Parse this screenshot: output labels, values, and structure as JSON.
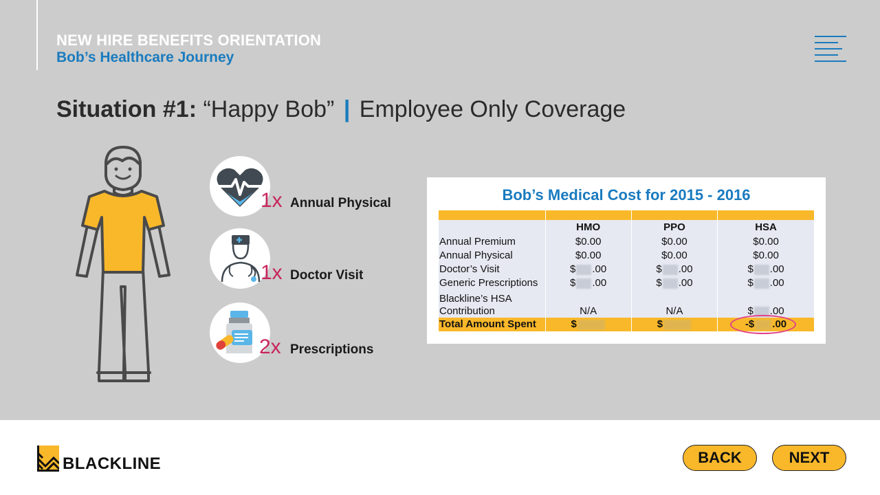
{
  "header": {
    "course_title": "NEW HIRE BENEFITS ORIENTATION",
    "course_subtitle": "Bob’s Healthcare Journey",
    "menu_icon": "hamburger-menu-icon"
  },
  "slide": {
    "situation_label": "Situation #1:",
    "situation_name": "“Happy Bob”",
    "separator": "|",
    "coverage": "Employee Only Coverage"
  },
  "items": [
    {
      "icon": "heart-rate-icon",
      "count": "1x",
      "label": "Annual Physical"
    },
    {
      "icon": "doctor-icon",
      "count": "1x",
      "label": "Doctor Visit"
    },
    {
      "icon": "prescription-bottle-icon",
      "count": "2x",
      "label": "Prescriptions"
    }
  ],
  "cost_table": {
    "title": "Bob’s Medical Cost for 2015 - 2016",
    "columns": [
      "",
      "HMO",
      "PPO",
      "HSA"
    ],
    "rows": [
      {
        "label": "Annual Premium",
        "hmo": "$0.00",
        "ppo": "$0.00",
        "hsa": "$0.00"
      },
      {
        "label": "Annual Physical",
        "hmo": "$0.00",
        "ppo": "$0.00",
        "hsa": "$0.00"
      },
      {
        "label": "Doctor’s Visit",
        "hmo_prefix": "$",
        "hmo_suffix": ".00",
        "ppo_prefix": "$",
        "ppo_suffix": ".00",
        "hsa_prefix": "$",
        "hsa_suffix": ".00"
      },
      {
        "label": "Generic Prescriptions",
        "hmo_prefix": "$",
        "hmo_suffix": ".00",
        "ppo_prefix": "$",
        "ppo_suffix": ".00",
        "hsa_prefix": "$",
        "hsa_suffix": ".00"
      },
      {
        "label_line1": "Blackline’s HSA",
        "label_line2": "Contribution",
        "hmo": "N/A",
        "ppo": "N/A",
        "hsa_prefix": "$",
        "hsa_suffix": ".00"
      }
    ],
    "total": {
      "label": "Total Amount Spent",
      "hmo_prefix": "$",
      "ppo_prefix": "$",
      "hsa_prefix": "-$",
      "hsa_suffix": ".00"
    }
  },
  "footer": {
    "logo_text": "BLACKLINE",
    "back_label": "BACK",
    "next_label": "NEXT"
  },
  "colors": {
    "accent_blue": "#1a7bbf",
    "accent_yellow": "#f9b82a",
    "count_magenta": "#c9245b",
    "background": "#cbcccb"
  }
}
